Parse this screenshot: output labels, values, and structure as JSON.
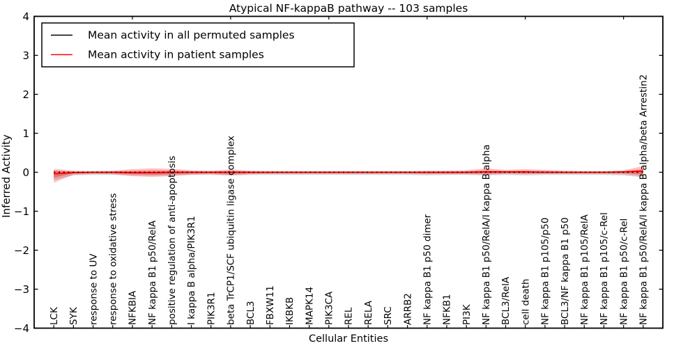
{
  "chart_data": {
    "type": "line",
    "title": "Atypical NF-kappaB pathway -- 103 samples",
    "xlabel": "Cellular Entities",
    "ylabel": "Inferred Activity",
    "ylim": [
      -4,
      4
    ],
    "grid": false,
    "legend_position": "upper-left",
    "ytick_labels": [
      "4",
      "3",
      "2",
      "1",
      "0",
      "−1",
      "−2",
      "−3",
      "−4"
    ],
    "ytick_values": [
      4,
      3,
      2,
      1,
      0,
      -1,
      -2,
      -3,
      -4
    ],
    "categories": [
      "LCK",
      "SYK",
      "response to UV",
      "response to oxidative stress",
      "NFKBIA",
      "NF kappa B1 p50/RelA",
      "positive regulation of anti-apoptosis",
      "I kappa B alpha/PIK3R1",
      "PIK3R1",
      "beta TrCP1/SCF ubiquitin ligase complex",
      "BCL3",
      "FBXW11",
      "IKBKB",
      "MAPK14",
      "PIK3CA",
      "REL",
      "RELA",
      "SRC",
      "ARRB2",
      "NF kappa B1 p50 dimer",
      "NFKB1",
      "PI3K",
      "NF kappa B1 p50/RelA/I kappa B alpha",
      "BCL3/RelA",
      "cell death",
      "NF kappa B1 p105/p50",
      "BCL3/NF kappa B1 p50",
      "NF kappa B1 p105/RelA",
      "NF kappa B1 p105/c-Rel",
      "NF kappa B1 p50/c-Rel",
      "NF kappa B1 p50/RelA/I kappa B alpha/beta Arrestin2"
    ],
    "series": [
      {
        "name": "Mean activity in all permuted samples",
        "color": "#000000",
        "line_style": "dotted",
        "values": [
          0,
          0,
          0,
          0,
          0,
          0,
          0,
          0,
          0,
          0,
          0,
          0,
          0,
          0,
          0,
          0,
          0,
          0,
          0,
          0,
          0,
          0,
          0,
          0,
          0,
          0,
          0,
          0,
          0,
          0,
          0
        ],
        "band_upper": [
          0.03,
          0.02,
          0.02,
          0.02,
          0.02,
          0.02,
          0.02,
          0.02,
          0.02,
          0.02,
          0.02,
          0.02,
          0.02,
          0.02,
          0.02,
          0.02,
          0.02,
          0.02,
          0.02,
          0.02,
          0.02,
          0.02,
          0.02,
          0.02,
          0.02,
          0.02,
          0.02,
          0.02,
          0.02,
          0.02,
          0.03
        ],
        "band_lower": [
          -0.2,
          -0.08,
          -0.07,
          -0.07,
          -0.08,
          -0.09,
          -0.08,
          -0.07,
          -0.07,
          -0.08,
          -0.07,
          -0.07,
          -0.07,
          -0.07,
          -0.07,
          -0.07,
          -0.07,
          -0.07,
          -0.07,
          -0.08,
          -0.07,
          -0.07,
          -0.08,
          -0.07,
          -0.08,
          -0.07,
          -0.07,
          -0.07,
          -0.07,
          -0.08,
          -0.13
        ]
      },
      {
        "name": "Mean activity in patient samples",
        "color": "#ff0000",
        "line_style": "solid",
        "values": [
          -0.04,
          -0.01,
          0,
          0,
          -0.01,
          -0.01,
          0,
          0,
          0,
          0,
          0,
          0,
          0,
          0,
          0,
          0,
          0,
          0,
          0,
          0,
          0,
          0,
          0.01,
          0.01,
          0.01,
          0,
          0,
          0,
          0,
          0.01,
          0.03
        ],
        "band_upper": [
          0.09,
          0.04,
          0.03,
          0.04,
          0.08,
          0.1,
          0.09,
          0.05,
          0.04,
          0.07,
          0.04,
          0.03,
          0.03,
          0.03,
          0.03,
          0.03,
          0.03,
          0.03,
          0.03,
          0.04,
          0.04,
          0.05,
          0.1,
          0.06,
          0.08,
          0.06,
          0.04,
          0.03,
          0.03,
          0.05,
          0.16
        ],
        "band_lower": [
          -0.27,
          -0.06,
          -0.04,
          -0.05,
          -0.1,
          -0.12,
          -0.1,
          -0.06,
          -0.05,
          -0.08,
          -0.05,
          -0.04,
          -0.04,
          -0.04,
          -0.04,
          -0.04,
          -0.04,
          -0.04,
          -0.04,
          -0.05,
          -0.05,
          -0.05,
          -0.06,
          -0.04,
          -0.05,
          -0.04,
          -0.04,
          -0.04,
          -0.04,
          -0.05,
          -0.1
        ]
      }
    ],
    "top_tick_indices": [
      4,
      9,
      14,
      19,
      24,
      29
    ]
  },
  "legend": {
    "items": [
      {
        "label": "Mean activity in all permuted samples",
        "color": "#000000"
      },
      {
        "label": "Mean activity in patient samples",
        "color": "#ff0000"
      }
    ]
  },
  "colors": {
    "patient_line": "#ff0000",
    "patient_band": "#ff0000",
    "permuted_line": "#000000",
    "permuted_band": "#999999",
    "frame": "#000000",
    "background": "#ffffff"
  }
}
